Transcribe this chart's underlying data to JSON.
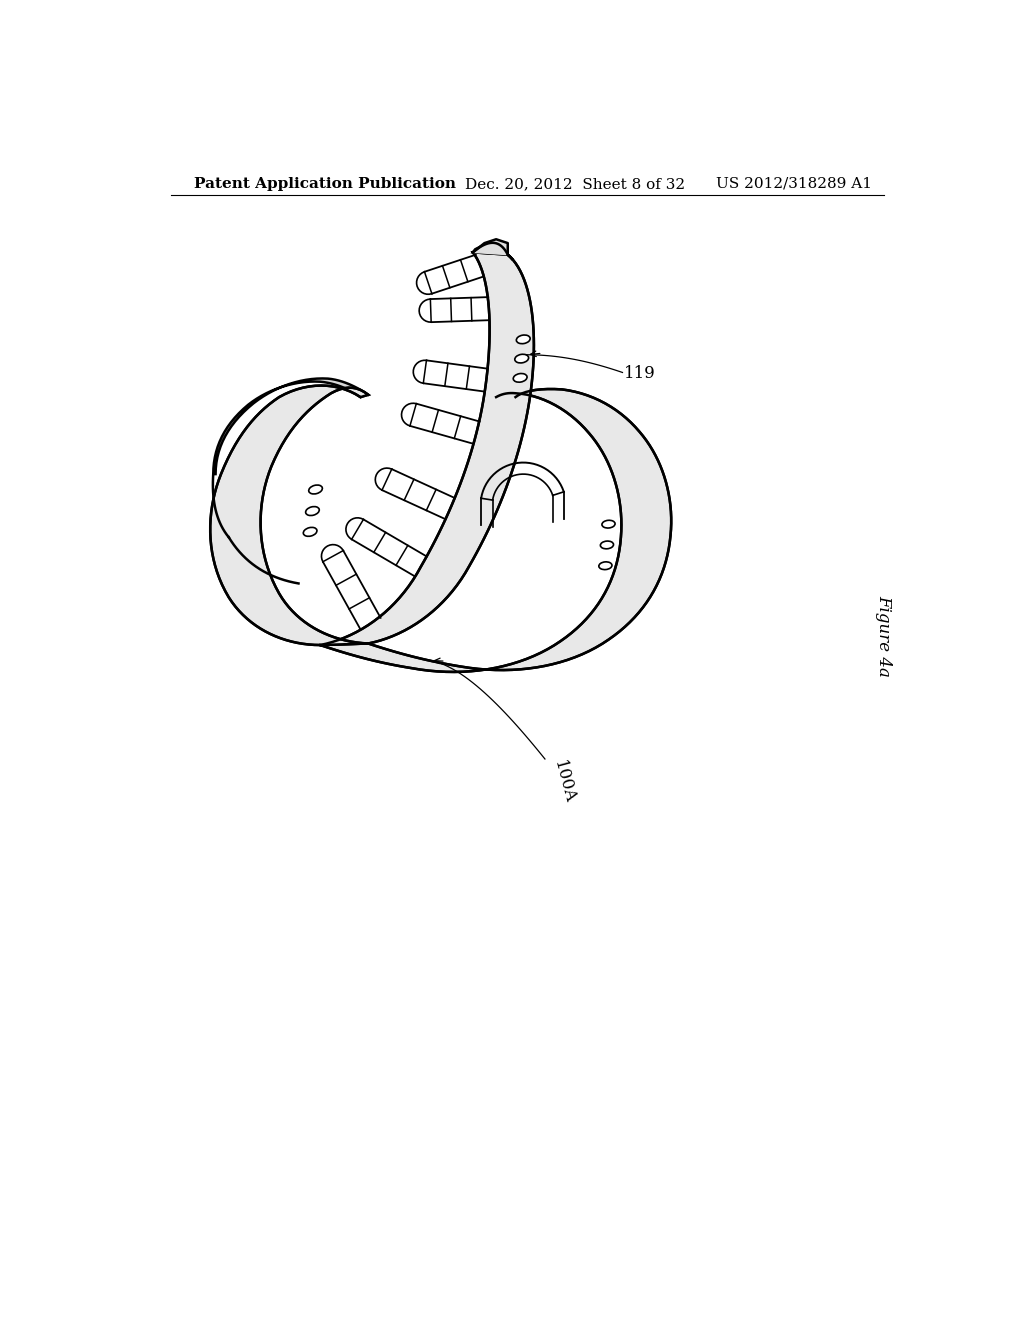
{
  "background_color": "#ffffff",
  "header_left": "Patent Application Publication",
  "header_center": "Dec. 20, 2012  Sheet 8 of 32",
  "header_right": "US 2012/318289 A1",
  "figure_label": "Figure 4a",
  "label_119": "119",
  "label_100A": "100A",
  "line_color": "#000000",
  "fill_light": "#e8e8e8",
  "fill_mid": "#d8d8d8",
  "fill_dark": "#c0c0c0",
  "header_font_size": 11,
  "label_font_size": 12,
  "lw_main": 1.8,
  "lw_detail": 1.2
}
